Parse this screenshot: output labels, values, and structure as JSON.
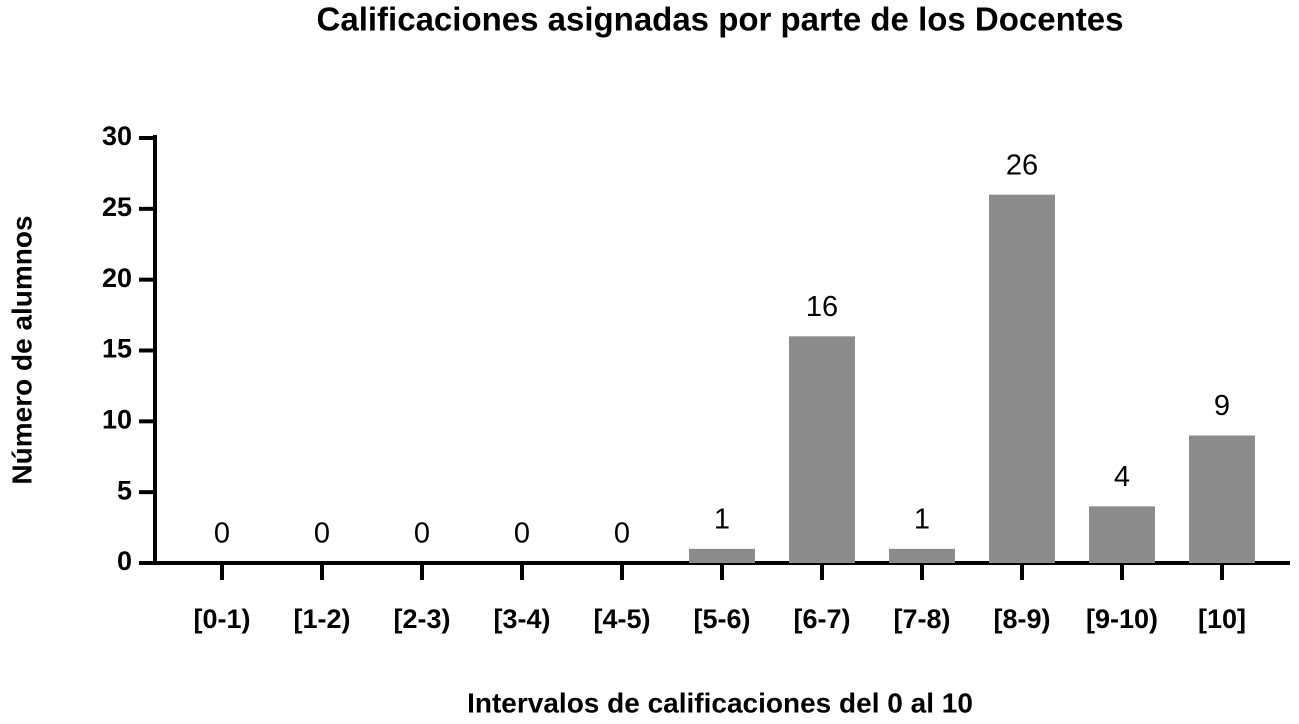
{
  "chart_data": {
    "type": "bar",
    "title": "Calificaciones asignadas por parte de los Docentes",
    "x_label": "Intervalos de calificaciones del 0 al 10",
    "y_label": "Número de alumnos",
    "categories": [
      "[0-1)",
      "[1-2)",
      "[2-3)",
      "[3-4)",
      "[4-5)",
      "[5-6)",
      "[6-7)",
      "[7-8)",
      "[8-9)",
      "[9-10)",
      "[10]"
    ],
    "values": [
      0,
      0,
      0,
      0,
      0,
      1,
      16,
      1,
      26,
      4,
      9
    ],
    "color": "#8c8c8c",
    "ylim": [
      0,
      30
    ],
    "yticks": [
      0,
      5,
      10,
      15,
      20,
      25,
      30
    ],
    "grid": false
  }
}
